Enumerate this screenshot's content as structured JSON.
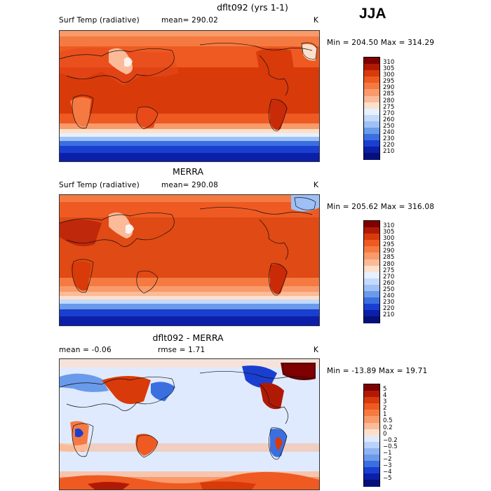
{
  "season": "JJA",
  "units": "K",
  "panels": [
    {
      "title": "dflt092 (yrs 1-1)",
      "variable": "Surf Temp (radiative)",
      "stat_text": "mean=  290.02",
      "units": "K",
      "minmax_text": "Min = 204.50  Max = 314.29",
      "colorbar_labels": [
        "310",
        "305",
        "300",
        "295",
        "290",
        "285",
        "280",
        "275",
        "270",
        "260",
        "250",
        "240",
        "230",
        "220",
        "210"
      ]
    },
    {
      "title": "MERRA",
      "variable": "Surf Temp (radiative)",
      "stat_text": "mean=  290.08",
      "units": "K",
      "minmax_text": "Min = 205.62  Max = 316.08",
      "colorbar_labels": [
        "310",
        "305",
        "300",
        "295",
        "290",
        "285",
        "280",
        "275",
        "270",
        "260",
        "250",
        "240",
        "230",
        "220",
        "210"
      ]
    },
    {
      "title": "dflt092 - MERRA",
      "mean_text": "mean =   -0.06",
      "rmse_text": "rmse =    1.71",
      "units": "K",
      "minmax_text": "Min = -13.89  Max =   19.71",
      "colorbar_labels": [
        "5",
        "4",
        "3",
        "2",
        "1",
        "0.5",
        "0.2",
        "0",
        "−0.2",
        "−0.5",
        "−1",
        "−2",
        "−3",
        "−4",
        "−5"
      ]
    }
  ],
  "colors": {
    "temp_scale": [
      "#7f0000",
      "#b01a05",
      "#d93a0a",
      "#ee5a22",
      "#f57a42",
      "#f99a6a",
      "#fbbb98",
      "#fde0cc",
      "#e6f0ff",
      "#c4dafc",
      "#9ec0f6",
      "#6a9aea",
      "#3b6fe0",
      "#1a3fd0",
      "#0b1fa8",
      "#05107a"
    ],
    "diff_scale": [
      "#7f0000",
      "#b01a05",
      "#d93a0a",
      "#ee5a22",
      "#f57a42",
      "#f99a6a",
      "#fbbb98",
      "#fde0cc",
      "#dfeaff",
      "#b9d2fb",
      "#8fb4f3",
      "#6a9aea",
      "#3b6fe0",
      "#1a3fd0",
      "#0b1fa8",
      "#05107a"
    ]
  }
}
